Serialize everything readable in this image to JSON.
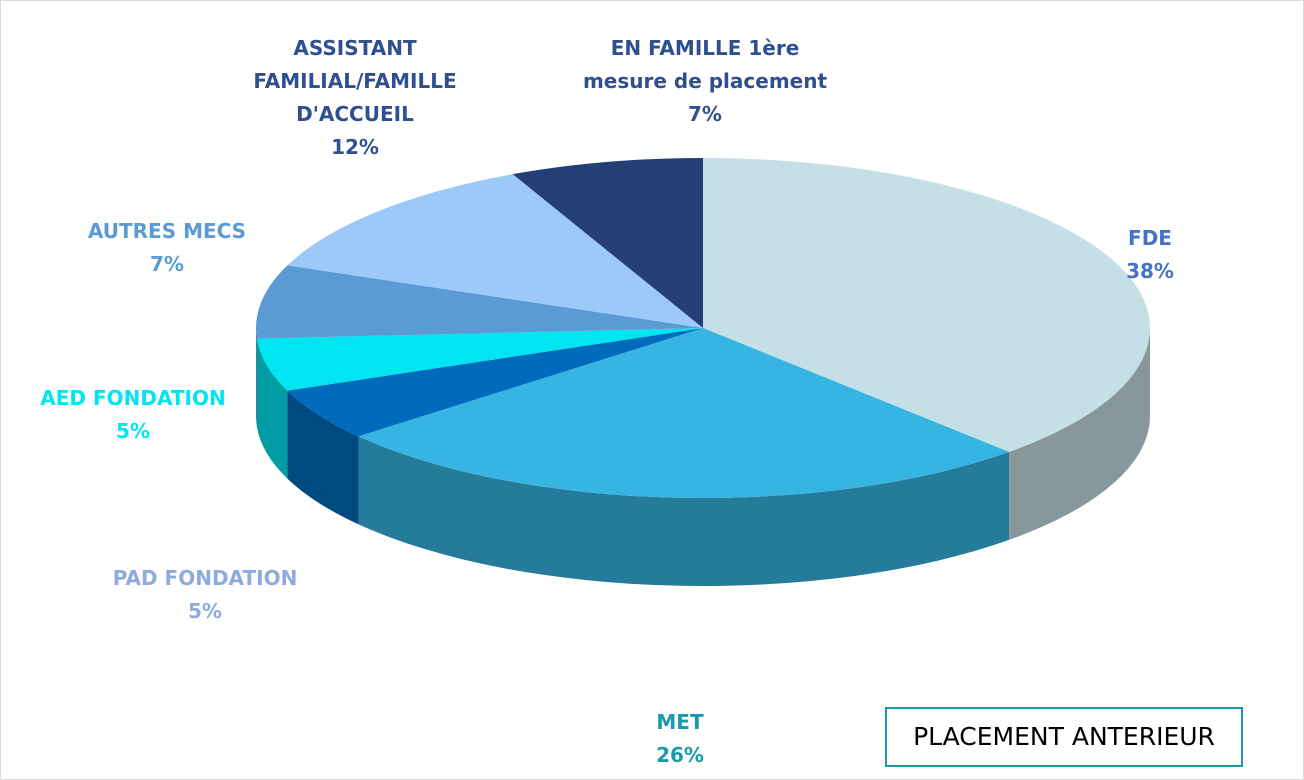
{
  "chart_data": {
    "type": "pie3d",
    "title": "PLACEMENT ANTERIEUR",
    "categories": [
      "FDE",
      "MET",
      "PAD FONDATION",
      "AED FONDATION",
      "AUTRES MECS",
      "ASSISTANT FAMILIAL/FAMILLE D'ACCUEIL",
      "EN FAMILLE 1ère mesure de placement"
    ],
    "values": [
      38,
      26,
      5,
      5,
      7,
      12,
      7
    ],
    "value_labels": [
      "38%",
      "26%",
      "5%",
      "5%",
      "7%",
      "12%",
      "7%"
    ],
    "colors": [
      "#c5dfe6",
      "#36b5e2",
      "#006bbd",
      "#00e5f0",
      "#5b9bd5",
      "#9cc9f8",
      "#243f75"
    ],
    "label_colors": [
      "#4472c4",
      "#1a9aa8",
      "#8faadc",
      "#00e5f0",
      "#5b9bd5",
      "#2f4f8f",
      "#2f4f8f"
    ]
  }
}
